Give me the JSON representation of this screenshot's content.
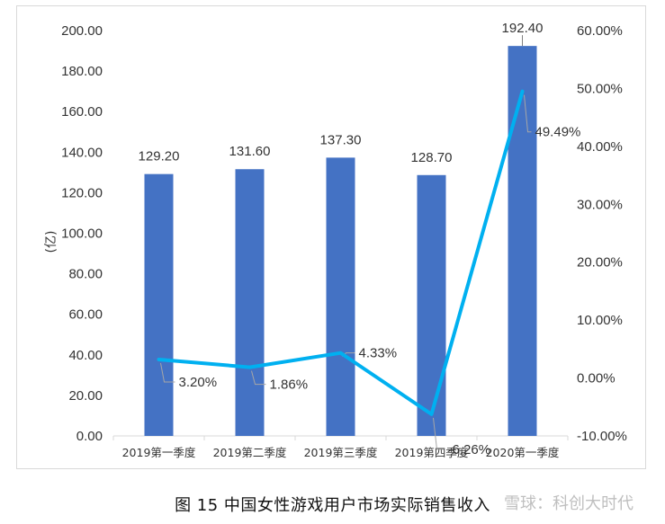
{
  "chart_data": {
    "type": "bar",
    "categories": [
      "2019第一季度",
      "2019第二季度",
      "2019第三季度",
      "2019第四季度",
      "2020第一季度"
    ],
    "ylabel": "(亿)",
    "ylim": [
      0,
      200
    ],
    "yticks": [
      "0.00",
      "20.00",
      "40.00",
      "60.00",
      "80.00",
      "100.00",
      "120.00",
      "140.00",
      "160.00",
      "180.00",
      "200.00"
    ],
    "y2lim": [
      -10,
      60
    ],
    "y2ticks": [
      "-10.00%",
      "0.00%",
      "10.00%",
      "20.00%",
      "30.00%",
      "40.00%",
      "50.00%",
      "60.00%"
    ],
    "series": [
      {
        "type": "bar",
        "values": [
          129.2,
          131.6,
          137.3,
          128.7,
          192.4
        ],
        "labels": [
          "129.20",
          "131.60",
          "137.30",
          "128.70",
          "192.40"
        ],
        "color": "#4472c4",
        "axis": "left"
      },
      {
        "type": "line",
        "values": [
          3.2,
          1.86,
          4.33,
          -6.26,
          49.49
        ],
        "labels": [
          "3.20%",
          "1.86%",
          "4.33%",
          "-6.26%",
          "49.49%"
        ],
        "color": "#00b0f0",
        "axis": "right"
      }
    ],
    "grid": false,
    "legend": "none"
  },
  "caption": "图 15  中国女性游戏用户市场实际销售收入",
  "watermark": "雪球：科创大时代"
}
